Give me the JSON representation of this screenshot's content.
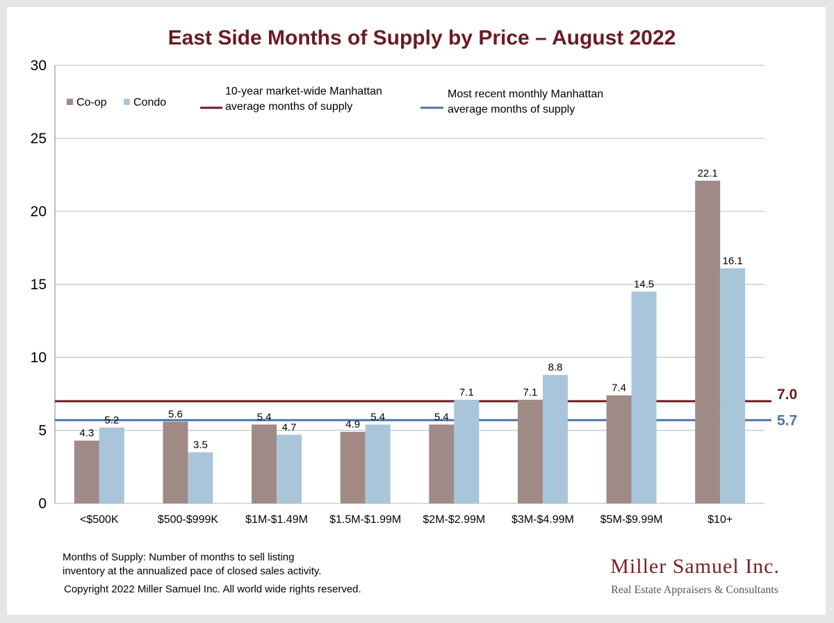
{
  "chart_data": {
    "type": "bar",
    "title": "East Side Months of Supply by Price – August 2022",
    "categories": [
      "<$500K",
      "$500-$999K",
      "$1M-$1.49M",
      "$1.5M-$1.99M",
      "$2M-$2.99M",
      "$3M-$4.99M",
      "$5M-$9.99M",
      "$10+"
    ],
    "series": [
      {
        "name": "Co-op",
        "color": "#a08a86",
        "values": [
          4.3,
          5.6,
          5.4,
          4.9,
          5.4,
          7.1,
          7.4,
          22.1
        ]
      },
      {
        "name": "Condo",
        "color": "#a9c5da",
        "values": [
          5.2,
          3.5,
          4.7,
          5.4,
          7.1,
          8.8,
          14.5,
          16.1
        ]
      }
    ],
    "data_labels": {
      "Co-op": [
        "4.3",
        "5.6",
        "5.4",
        "4.9",
        "5.4",
        "7.1",
        "7.4",
        "22.1"
      ],
      "Condo": [
        "5.2",
        "3.5",
        "4.7",
        "5.4",
        "7.1",
        "8.8",
        "14.5",
        "16.1"
      ]
    },
    "yticks": [
      0,
      5,
      10,
      15,
      20,
      25,
      30
    ],
    "ylim": [
      0,
      30
    ],
    "grid": true,
    "reference_lines": [
      {
        "label_line1": "10-year  market-wide Manhattan",
        "label_line2": "average months of supply",
        "value": 7.0,
        "value_label": "7.0",
        "color": "#6b1a22"
      },
      {
        "label_line1": "Most recent monthly Manhattan",
        "label_line2": "average months of supply",
        "value": 5.7,
        "value_label": "5.7",
        "color": "#4a74a8"
      }
    ],
    "legend_position": "top-left"
  },
  "footnote": {
    "line1": "Months of Supply: Number of months to sell listing",
    "line2": "inventory at the annualized pace of closed sales activity.",
    "copyright": "Copyright 2022 Miller Samuel Inc.  All world wide rights reserved."
  },
  "brand": {
    "name": "Miller Samuel Inc.",
    "tagline": "Real Estate Appraisers & Consultants"
  }
}
